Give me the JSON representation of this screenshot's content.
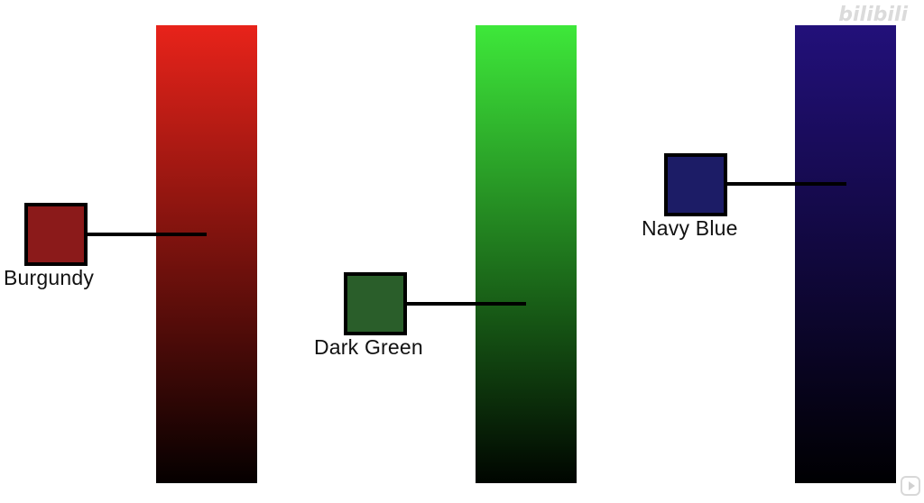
{
  "colors": [
    {
      "label": "Burgundy",
      "swatch_color": "#8b1a1a",
      "bar_top_color": "#e8231a",
      "bar_bottom_color": "#050000"
    },
    {
      "label": "Dark Green",
      "swatch_color": "#2a5e2a",
      "bar_top_color": "#3ee83a",
      "bar_bottom_color": "#000500"
    },
    {
      "label": "Navy Blue",
      "swatch_color": "#1c1c66",
      "bar_top_color": "#22107a",
      "bar_bottom_color": "#000002"
    }
  ],
  "watermark": {
    "text": "bilibili",
    "icon": "play-icon"
  }
}
